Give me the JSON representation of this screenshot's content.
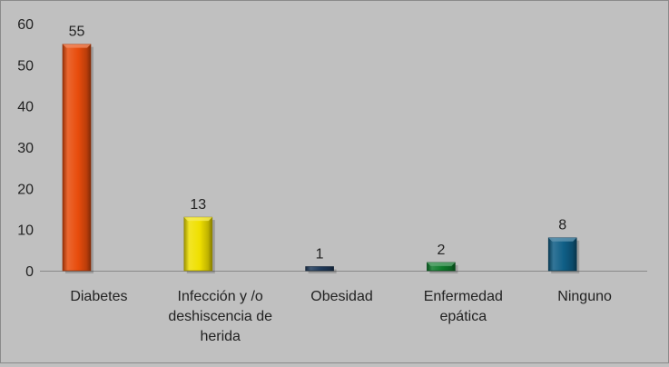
{
  "chart_data": {
    "type": "bar",
    "title": "",
    "xlabel": "",
    "ylabel": "",
    "categories": [
      [
        "Diabetes"
      ],
      [
        "Infección y /o",
        "deshiscencia de",
        "herida"
      ],
      [
        "Obesidad"
      ],
      [
        "Enfermedad",
        "epática"
      ],
      [
        "Ninguno"
      ]
    ],
    "values": [
      55,
      13,
      1,
      2,
      8
    ],
    "data_labels": [
      "55",
      "13",
      "1",
      "2",
      "8"
    ],
    "colors": [
      "#e84c0c",
      "#f0e000",
      "#1f3a5a",
      "#0d7a2a",
      "#0f5e86"
    ],
    "ylim": [
      0,
      60
    ],
    "yticks": [
      0,
      10,
      20,
      30,
      40,
      50,
      60
    ],
    "grid": false,
    "legend": "none"
  }
}
